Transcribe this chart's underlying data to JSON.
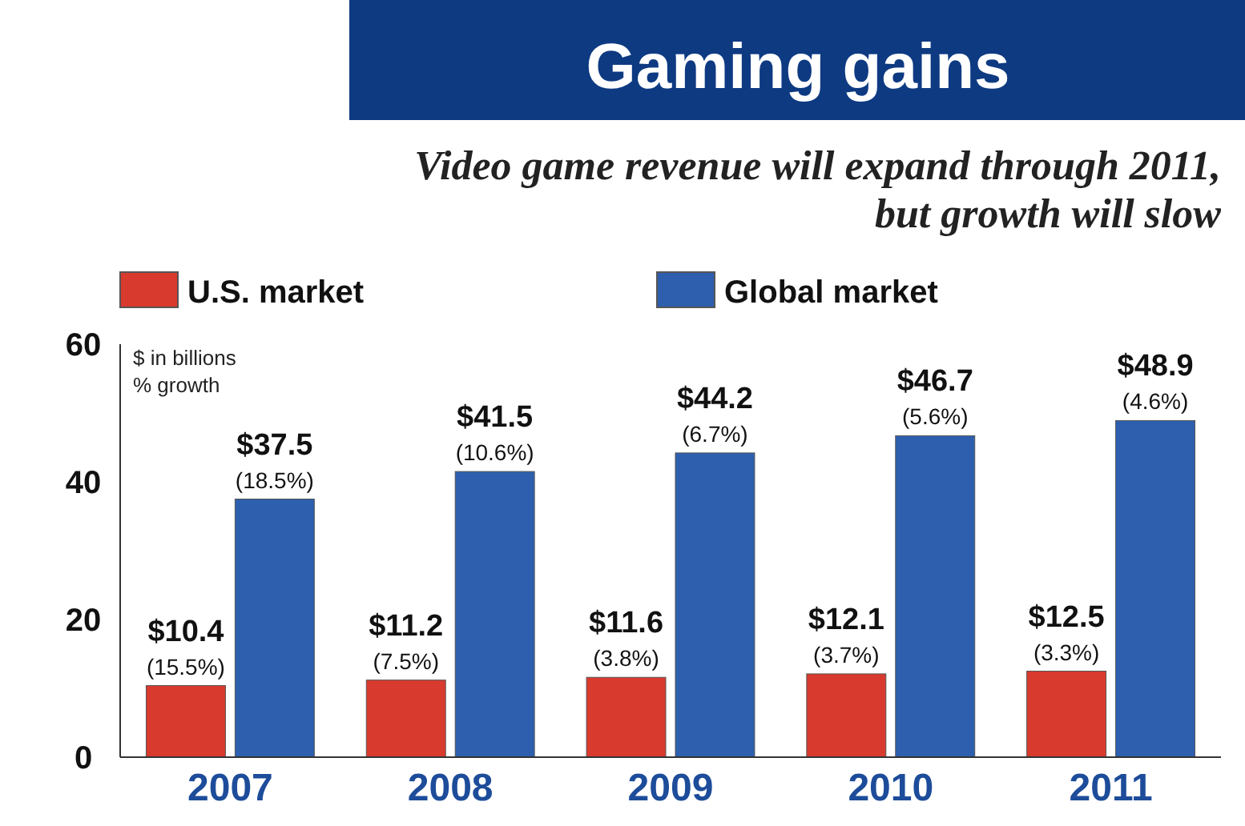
{
  "chart_data": {
    "type": "bar",
    "title": "Gaming gains",
    "subtitle": "Video game revenue will expand through 2011, but growth will slow",
    "categories": [
      "2007",
      "2008",
      "2009",
      "2010",
      "2011"
    ],
    "series": [
      {
        "name": "U.S. market",
        "color": "#d93a2e",
        "values": [
          10.4,
          11.2,
          11.6,
          12.1,
          12.5
        ],
        "value_labels": [
          "$10.4 (15.5%)",
          "$11.2 (7.5%)",
          "$11.6 (3.8%)",
          "$12.1 (3.7%)",
          "$12.5 (3.3%)"
        ]
      },
      {
        "name": "Global market",
        "color": "#2d5fae",
        "values": [
          37.5,
          41.5,
          44.2,
          46.7,
          48.9
        ],
        "value_labels": [
          "$37.5 (18.5%)",
          "$41.5 (10.6%)",
          "$44.2 (6.7%)",
          "$46.7 (5.6%)",
          "$48.9 (4.6%)"
        ]
      }
    ],
    "ylim": [
      0,
      60
    ],
    "yticks": [
      0,
      20,
      40,
      60
    ],
    "legend": "top",
    "grid": false,
    "annotations": [
      "$ in billions",
      "% growth"
    ]
  }
}
